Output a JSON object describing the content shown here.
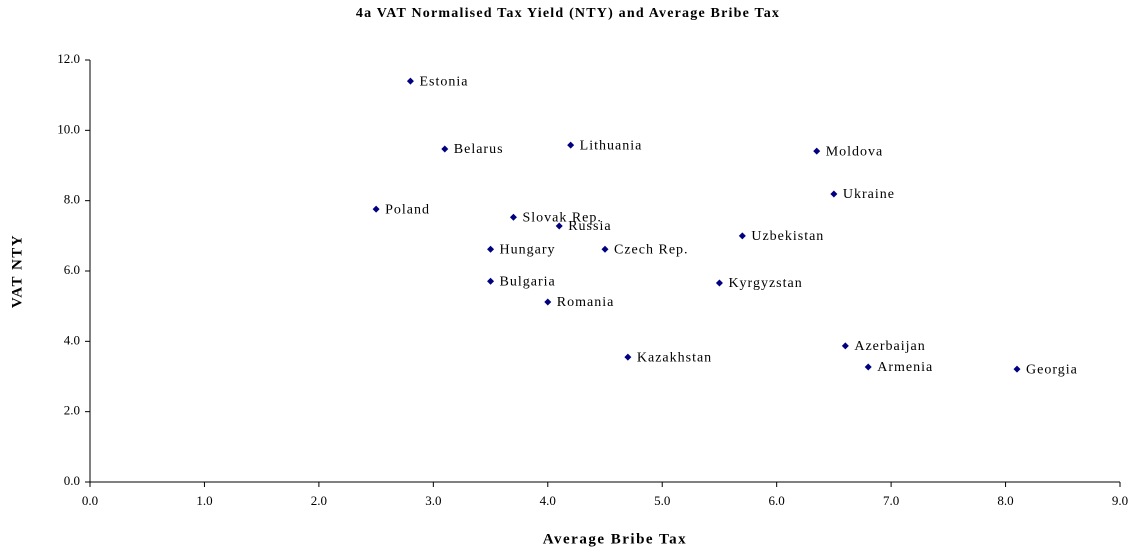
{
  "chart_data": {
    "type": "scatter",
    "title": "4a VAT Normalised Tax Yield (NTY) and Average Bribe Tax",
    "x_label": "Average Bribe Tax",
    "y_label": "VAT NTY",
    "color": "#000080",
    "points": [
      {
        "name": "Estonia",
        "x": 2.8,
        "y": 11.4
      },
      {
        "name": "Belarus",
        "x": 3.1,
        "y": 9.47
      },
      {
        "name": "Lithuania",
        "x": 4.2,
        "y": 9.58
      },
      {
        "name": "Moldova",
        "x": 6.35,
        "y": 9.41
      },
      {
        "name": "Ukraine",
        "x": 6.5,
        "y": 8.19
      },
      {
        "name": "Poland",
        "x": 2.5,
        "y": 7.76
      },
      {
        "name": "Slovak Rep.",
        "x": 3.7,
        "y": 7.53
      },
      {
        "name": "Russia",
        "x": 4.1,
        "y": 7.28
      },
      {
        "name": "Uzbekistan",
        "x": 5.7,
        "y": 7.0
      },
      {
        "name": "Hungary",
        "x": 3.5,
        "y": 6.62
      },
      {
        "name": "Czech Rep.",
        "x": 4.5,
        "y": 6.62
      },
      {
        "name": "Bulgaria",
        "x": 3.5,
        "y": 5.71
      },
      {
        "name": "Kyrgyzstan",
        "x": 5.5,
        "y": 5.66
      },
      {
        "name": "Romania",
        "x": 4.0,
        "y": 5.12
      },
      {
        "name": "Azerbaijan",
        "x": 6.6,
        "y": 3.87
      },
      {
        "name": "Kazakhstan",
        "x": 4.7,
        "y": 3.55
      },
      {
        "name": "Armenia",
        "x": 6.8,
        "y": 3.27
      },
      {
        "name": "Georgia",
        "x": 8.1,
        "y": 3.21
      }
    ],
    "xlim": [
      0,
      9
    ],
    "xticks": [
      {
        "value": 0,
        "label": "0.0"
      },
      {
        "value": 1,
        "label": "1.0"
      },
      {
        "value": 2,
        "label": "2.0"
      },
      {
        "value": 3,
        "label": "3.0"
      },
      {
        "value": 4,
        "label": "4.0"
      },
      {
        "value": 5,
        "label": "5.0"
      },
      {
        "value": 6,
        "label": "6.0"
      },
      {
        "value": 7,
        "label": "7.0"
      },
      {
        "value": 8,
        "label": "8.0"
      },
      {
        "value": 9,
        "label": "9.0"
      }
    ],
    "ylim": [
      0,
      12
    ],
    "yticks": [
      {
        "value": 0,
        "label": "0.0"
      },
      {
        "value": 2,
        "label": "2.0"
      },
      {
        "value": 4,
        "label": "4.0"
      },
      {
        "value": 6,
        "label": "6.0"
      },
      {
        "value": 8,
        "label": "8.0"
      },
      {
        "value": 10,
        "label": "10.0"
      },
      {
        "value": 12,
        "label": "12.0"
      }
    ]
  }
}
